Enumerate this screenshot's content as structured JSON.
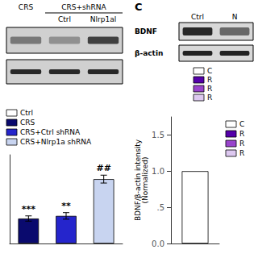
{
  "chart_data": [
    {
      "type": "blot",
      "categories": [
        "CRS",
        "Ctrl",
        "Nlrp1al"
      ],
      "annotations": [
        "CRS+shRNA"
      ]
    },
    {
      "type": "blot",
      "title": "C",
      "categories": [
        "Ctrl",
        "N"
      ],
      "annotations": [
        "BDNF",
        "β-actin"
      ],
      "series": [
        {
          "name": "C",
          "color": "white"
        },
        {
          "name": "R",
          "color": "#5500aa"
        },
        {
          "name": "R",
          "color": "#9944cc"
        },
        {
          "name": "R",
          "color": "#ddc8f0"
        }
      ]
    },
    {
      "type": "bar",
      "categories": [
        null,
        null,
        null
      ],
      "values": [
        0.38,
        0.42,
        0.98
      ],
      "errors": [
        0.04,
        0.05,
        0.06
      ],
      "colors": [
        "#0a0a6e",
        "#2525cc",
        "#c8d4f0"
      ],
      "annotations": [
        "***",
        "**",
        "##"
      ],
      "ylim": [
        0,
        1.35
      ],
      "tick_labels": false,
      "grid": false,
      "series": [
        {
          "name": "Ctrl",
          "color": "white"
        },
        {
          "name": "CRS",
          "color": "#0a0a6e"
        },
        {
          "name": "CRS+Ctrl shRNA",
          "color": "#2525cc"
        },
        {
          "name": "CRS+Nlrp1a shRNA",
          "color": "#c8d4f0"
        }
      ]
    },
    {
      "type": "bar",
      "categories": [
        null
      ],
      "values": [
        1.0
      ],
      "colors": [
        "white"
      ],
      "ylabel": "BDNF/β-actin intensity\n(Normalized)",
      "ylim": [
        0.0,
        1.75
      ],
      "yticks": [
        {
          "value": 0.0,
          "label": "0.0"
        },
        {
          "value": 0.5,
          "label": ".5"
        },
        {
          "value": 1.0,
          "label": "1.0"
        },
        {
          "value": 1.5,
          "label": "1.5"
        }
      ],
      "tick_labels": "y",
      "grid": false,
      "series": [
        {
          "name": "C",
          "color": "white"
        },
        {
          "name": "R",
          "color": "#5500aa"
        },
        {
          "name": "R",
          "color": "#9944cc"
        },
        {
          "name": "R",
          "color": "#ddc8f0"
        }
      ]
    }
  ]
}
